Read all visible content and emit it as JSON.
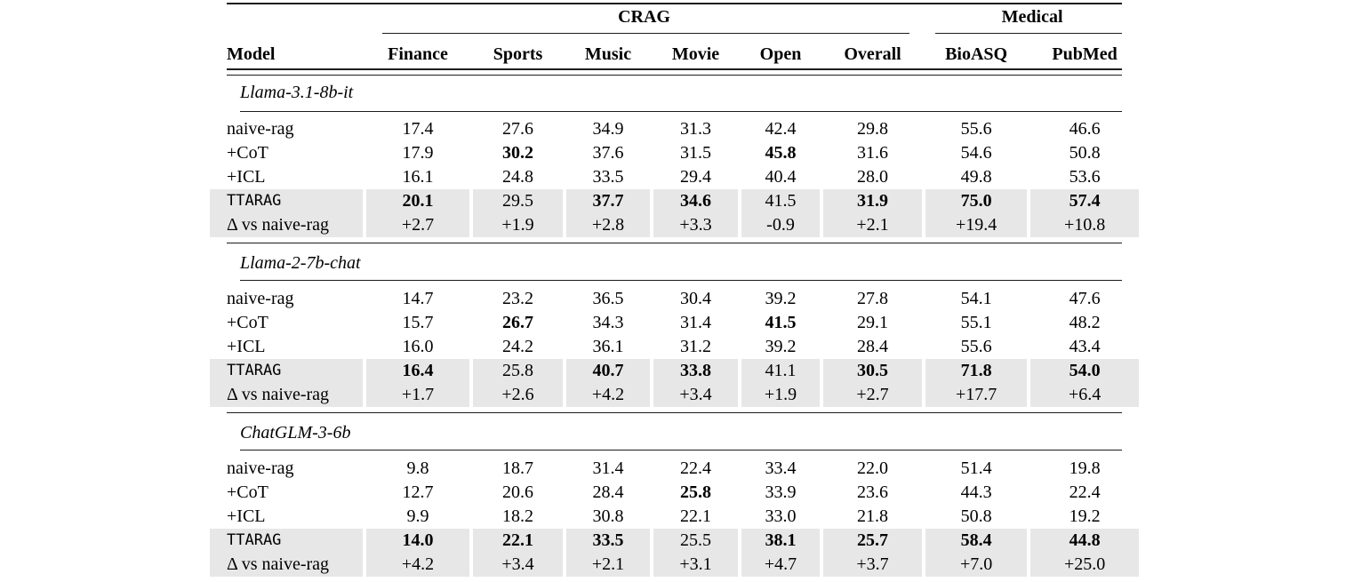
{
  "colors": {
    "row_highlight": "#e7e7e7",
    "rule": "#1c1c1c"
  },
  "table": {
    "col_groups": [
      {
        "label": "CRAG",
        "span": 6
      },
      {
        "label": "Medical",
        "span": 2
      }
    ],
    "columns": [
      "Model",
      "Finance",
      "Sports",
      "Music",
      "Movie",
      "Open",
      "Overall",
      "BioASQ",
      "PubMed"
    ],
    "sections": [
      {
        "title": "Llama-3.1-8b-it",
        "rows": [
          {
            "label": "naive-rag",
            "mono": false,
            "shaded": false,
            "values": [
              {
                "v": "17.4",
                "bold": false
              },
              {
                "v": "27.6",
                "bold": false
              },
              {
                "v": "34.9",
                "bold": false
              },
              {
                "v": "31.3",
                "bold": false
              },
              {
                "v": "42.4",
                "bold": false
              },
              {
                "v": "29.8",
                "bold": false
              },
              {
                "v": "55.6",
                "bold": false
              },
              {
                "v": "46.6",
                "bold": false
              }
            ]
          },
          {
            "label": "+CoT",
            "mono": false,
            "shaded": false,
            "values": [
              {
                "v": "17.9",
                "bold": false
              },
              {
                "v": "30.2",
                "bold": true
              },
              {
                "v": "37.6",
                "bold": false
              },
              {
                "v": "31.5",
                "bold": false
              },
              {
                "v": "45.8",
                "bold": true
              },
              {
                "v": "31.6",
                "bold": false
              },
              {
                "v": "54.6",
                "bold": false
              },
              {
                "v": "50.8",
                "bold": false
              }
            ]
          },
          {
            "label": "+ICL",
            "mono": false,
            "shaded": false,
            "values": [
              {
                "v": "16.1",
                "bold": false
              },
              {
                "v": "24.8",
                "bold": false
              },
              {
                "v": "33.5",
                "bold": false
              },
              {
                "v": "29.4",
                "bold": false
              },
              {
                "v": "40.4",
                "bold": false
              },
              {
                "v": "28.0",
                "bold": false
              },
              {
                "v": "49.8",
                "bold": false
              },
              {
                "v": "53.6",
                "bold": false
              }
            ]
          },
          {
            "label": "TTARAG",
            "mono": true,
            "shaded": true,
            "values": [
              {
                "v": "20.1",
                "bold": true
              },
              {
                "v": "29.5",
                "bold": false
              },
              {
                "v": "37.7",
                "bold": true
              },
              {
                "v": "34.6",
                "bold": true
              },
              {
                "v": "41.5",
                "bold": false
              },
              {
                "v": "31.9",
                "bold": true
              },
              {
                "v": "75.0",
                "bold": true
              },
              {
                "v": "57.4",
                "bold": true
              }
            ]
          },
          {
            "label": "Δ vs naive-rag",
            "mono": false,
            "shaded": true,
            "values": [
              {
                "v": "+2.7",
                "bold": false
              },
              {
                "v": "+1.9",
                "bold": false
              },
              {
                "v": "+2.8",
                "bold": false
              },
              {
                "v": "+3.3",
                "bold": false
              },
              {
                "v": "-0.9",
                "bold": false
              },
              {
                "v": "+2.1",
                "bold": false
              },
              {
                "v": "+19.4",
                "bold": false
              },
              {
                "v": "+10.8",
                "bold": false
              }
            ]
          }
        ]
      },
      {
        "title": "Llama-2-7b-chat",
        "rows": [
          {
            "label": "naive-rag",
            "mono": false,
            "shaded": false,
            "values": [
              {
                "v": "14.7",
                "bold": false
              },
              {
                "v": "23.2",
                "bold": false
              },
              {
                "v": "36.5",
                "bold": false
              },
              {
                "v": "30.4",
                "bold": false
              },
              {
                "v": "39.2",
                "bold": false
              },
              {
                "v": "27.8",
                "bold": false
              },
              {
                "v": "54.1",
                "bold": false
              },
              {
                "v": "47.6",
                "bold": false
              }
            ]
          },
          {
            "label": "+CoT",
            "mono": false,
            "shaded": false,
            "values": [
              {
                "v": "15.7",
                "bold": false
              },
              {
                "v": "26.7",
                "bold": true
              },
              {
                "v": "34.3",
                "bold": false
              },
              {
                "v": "31.4",
                "bold": false
              },
              {
                "v": "41.5",
                "bold": true
              },
              {
                "v": "29.1",
                "bold": false
              },
              {
                "v": "55.1",
                "bold": false
              },
              {
                "v": "48.2",
                "bold": false
              }
            ]
          },
          {
            "label": "+ICL",
            "mono": false,
            "shaded": false,
            "values": [
              {
                "v": "16.0",
                "bold": false
              },
              {
                "v": "24.2",
                "bold": false
              },
              {
                "v": "36.1",
                "bold": false
              },
              {
                "v": "31.2",
                "bold": false
              },
              {
                "v": "39.2",
                "bold": false
              },
              {
                "v": "28.4",
                "bold": false
              },
              {
                "v": "55.6",
                "bold": false
              },
              {
                "v": "43.4",
                "bold": false
              }
            ]
          },
          {
            "label": "TTARAG",
            "mono": true,
            "shaded": true,
            "values": [
              {
                "v": "16.4",
                "bold": true
              },
              {
                "v": "25.8",
                "bold": false
              },
              {
                "v": "40.7",
                "bold": true
              },
              {
                "v": "33.8",
                "bold": true
              },
              {
                "v": "41.1",
                "bold": false
              },
              {
                "v": "30.5",
                "bold": true
              },
              {
                "v": "71.8",
                "bold": true
              },
              {
                "v": "54.0",
                "bold": true
              }
            ]
          },
          {
            "label": "Δ vs naive-rag",
            "mono": false,
            "shaded": true,
            "values": [
              {
                "v": "+1.7",
                "bold": false
              },
              {
                "v": "+2.6",
                "bold": false
              },
              {
                "v": "+4.2",
                "bold": false
              },
              {
                "v": "+3.4",
                "bold": false
              },
              {
                "v": "+1.9",
                "bold": false
              },
              {
                "v": "+2.7",
                "bold": false
              },
              {
                "v": "+17.7",
                "bold": false
              },
              {
                "v": "+6.4",
                "bold": false
              }
            ]
          }
        ]
      },
      {
        "title": "ChatGLM-3-6b",
        "rows": [
          {
            "label": "naive-rag",
            "mono": false,
            "shaded": false,
            "values": [
              {
                "v": "9.8",
                "bold": false
              },
              {
                "v": "18.7",
                "bold": false
              },
              {
                "v": "31.4",
                "bold": false
              },
              {
                "v": "22.4",
                "bold": false
              },
              {
                "v": "33.4",
                "bold": false
              },
              {
                "v": "22.0",
                "bold": false
              },
              {
                "v": "51.4",
                "bold": false
              },
              {
                "v": "19.8",
                "bold": false
              }
            ]
          },
          {
            "label": "+CoT",
            "mono": false,
            "shaded": false,
            "values": [
              {
                "v": "12.7",
                "bold": false
              },
              {
                "v": "20.6",
                "bold": false
              },
              {
                "v": "28.4",
                "bold": false
              },
              {
                "v": "25.8",
                "bold": true
              },
              {
                "v": "33.9",
                "bold": false
              },
              {
                "v": "23.6",
                "bold": false
              },
              {
                "v": "44.3",
                "bold": false
              },
              {
                "v": "22.4",
                "bold": false
              }
            ]
          },
          {
            "label": "+ICL",
            "mono": false,
            "shaded": false,
            "values": [
              {
                "v": "9.9",
                "bold": false
              },
              {
                "v": "18.2",
                "bold": false
              },
              {
                "v": "30.8",
                "bold": false
              },
              {
                "v": "22.1",
                "bold": false
              },
              {
                "v": "33.0",
                "bold": false
              },
              {
                "v": "21.8",
                "bold": false
              },
              {
                "v": "50.8",
                "bold": false
              },
              {
                "v": "19.2",
                "bold": false
              }
            ]
          },
          {
            "label": "TTARAG",
            "mono": true,
            "shaded": true,
            "values": [
              {
                "v": "14.0",
                "bold": true
              },
              {
                "v": "22.1",
                "bold": true
              },
              {
                "v": "33.5",
                "bold": true
              },
              {
                "v": "25.5",
                "bold": false
              },
              {
                "v": "38.1",
                "bold": true
              },
              {
                "v": "25.7",
                "bold": true
              },
              {
                "v": "58.4",
                "bold": true
              },
              {
                "v": "44.8",
                "bold": true
              }
            ]
          },
          {
            "label": "Δ vs naive-rag",
            "mono": false,
            "shaded": true,
            "values": [
              {
                "v": "+4.2",
                "bold": false
              },
              {
                "v": "+3.4",
                "bold": false
              },
              {
                "v": "+2.1",
                "bold": false
              },
              {
                "v": "+3.1",
                "bold": false
              },
              {
                "v": "+4.7",
                "bold": false
              },
              {
                "v": "+3.7",
                "bold": false
              },
              {
                "v": "+7.0",
                "bold": false
              },
              {
                "v": "+25.0",
                "bold": false
              }
            ]
          }
        ]
      }
    ]
  }
}
